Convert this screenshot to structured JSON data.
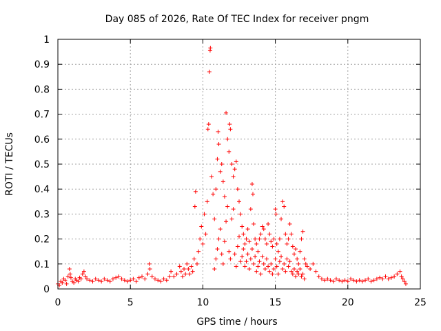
{
  "chart_data": {
    "type": "scatter",
    "title": "Day 085 of 2026, Rate Of TEC Index for receiver pngm",
    "xlabel": "GPS time / hours",
    "ylabel": "ROTI / TECUs",
    "xlim": [
      0,
      25
    ],
    "ylim": [
      0,
      1
    ],
    "xticks": [
      "0",
      "5",
      "10",
      "15",
      "20",
      "25"
    ],
    "yticks": [
      "0",
      "0.1",
      "0.2",
      "0.3",
      "0.4",
      "0.5",
      "0.6",
      "0.7",
      "0.8",
      "0.9",
      "1"
    ],
    "grid": true,
    "marker": "+",
    "color": "#ff0000",
    "series": [
      {
        "name": "ROTI",
        "points": [
          [
            0.0,
            0.02
          ],
          [
            0.1,
            0.015
          ],
          [
            0.2,
            0.03
          ],
          [
            0.3,
            0.025
          ],
          [
            0.4,
            0.04
          ],
          [
            0.5,
            0.035
          ],
          [
            0.6,
            0.02
          ],
          [
            0.7,
            0.05
          ],
          [
            0.8,
            0.08
          ],
          [
            0.85,
            0.06
          ],
          [
            0.9,
            0.045
          ],
          [
            1.0,
            0.03
          ],
          [
            1.1,
            0.025
          ],
          [
            1.2,
            0.04
          ],
          [
            1.3,
            0.035
          ],
          [
            1.4,
            0.03
          ],
          [
            1.5,
            0.045
          ],
          [
            1.6,
            0.04
          ],
          [
            1.7,
            0.06
          ],
          [
            1.8,
            0.07
          ],
          [
            1.9,
            0.05
          ],
          [
            2.0,
            0.04
          ],
          [
            2.2,
            0.035
          ],
          [
            2.4,
            0.03
          ],
          [
            2.6,
            0.04
          ],
          [
            2.8,
            0.035
          ],
          [
            3.0,
            0.03
          ],
          [
            3.2,
            0.04
          ],
          [
            3.4,
            0.035
          ],
          [
            3.6,
            0.03
          ],
          [
            3.8,
            0.04
          ],
          [
            4.0,
            0.045
          ],
          [
            4.2,
            0.05
          ],
          [
            4.4,
            0.04
          ],
          [
            4.6,
            0.035
          ],
          [
            4.8,
            0.03
          ],
          [
            5.0,
            0.035
          ],
          [
            5.2,
            0.04
          ],
          [
            5.4,
            0.03
          ],
          [
            5.6,
            0.045
          ],
          [
            5.8,
            0.05
          ],
          [
            6.0,
            0.04
          ],
          [
            6.2,
            0.06
          ],
          [
            6.3,
            0.1
          ],
          [
            6.35,
            0.08
          ],
          [
            6.5,
            0.05
          ],
          [
            6.7,
            0.04
          ],
          [
            6.9,
            0.035
          ],
          [
            7.1,
            0.03
          ],
          [
            7.3,
            0.04
          ],
          [
            7.5,
            0.035
          ],
          [
            7.7,
            0.05
          ],
          [
            7.8,
            0.07
          ],
          [
            8.0,
            0.05
          ],
          [
            8.2,
            0.06
          ],
          [
            8.4,
            0.09
          ],
          [
            8.5,
            0.07
          ],
          [
            8.6,
            0.05
          ],
          [
            8.7,
            0.08
          ],
          [
            8.8,
            0.06
          ],
          [
            8.9,
            0.1
          ],
          [
            9.0,
            0.08
          ],
          [
            9.1,
            0.06
          ],
          [
            9.2,
            0.09
          ],
          [
            9.3,
            0.07
          ],
          [
            9.4,
            0.12
          ],
          [
            9.45,
            0.33
          ],
          [
            9.5,
            0.39
          ],
          [
            9.6,
            0.1
          ],
          [
            9.7,
            0.15
          ],
          [
            9.8,
            0.2
          ],
          [
            9.9,
            0.25
          ],
          [
            10.0,
            0.18
          ],
          [
            10.1,
            0.3
          ],
          [
            10.2,
            0.22
          ],
          [
            10.3,
            0.35
          ],
          [
            10.35,
            0.64
          ],
          [
            10.4,
            0.66
          ],
          [
            10.45,
            0.87
          ],
          [
            10.5,
            0.955
          ],
          [
            10.52,
            0.965
          ],
          [
            10.6,
            0.45
          ],
          [
            10.7,
            0.38
          ],
          [
            10.8,
            0.28
          ],
          [
            10.9,
            0.4
          ],
          [
            11.0,
            0.52
          ],
          [
            11.05,
            0.63
          ],
          [
            11.1,
            0.58
          ],
          [
            11.2,
            0.47
          ],
          [
            11.3,
            0.5
          ],
          [
            11.4,
            0.43
          ],
          [
            11.5,
            0.37
          ],
          [
            11.6,
            0.705
          ],
          [
            11.7,
            0.6
          ],
          [
            11.8,
            0.55
          ],
          [
            11.85,
            0.66
          ],
          [
            11.9,
            0.64
          ],
          [
            12.0,
            0.5
          ],
          [
            12.1,
            0.45
          ],
          [
            12.2,
            0.48
          ],
          [
            12.3,
            0.51
          ],
          [
            12.4,
            0.4
          ],
          [
            12.5,
            0.35
          ],
          [
            12.6,
            0.3
          ],
          [
            12.7,
            0.25
          ],
          [
            12.8,
            0.22
          ],
          [
            12.9,
            0.18
          ],
          [
            13.0,
            0.2
          ],
          [
            13.1,
            0.24
          ],
          [
            13.2,
            0.19
          ],
          [
            13.3,
            0.32
          ],
          [
            13.4,
            0.42
          ],
          [
            13.45,
            0.38
          ],
          [
            13.5,
            0.26
          ],
          [
            13.6,
            0.2
          ],
          [
            13.7,
            0.18
          ],
          [
            13.8,
            0.15
          ],
          [
            13.9,
            0.2
          ],
          [
            14.0,
            0.22
          ],
          [
            14.1,
            0.25
          ],
          [
            14.2,
            0.24
          ],
          [
            14.3,
            0.2
          ],
          [
            14.4,
            0.18
          ],
          [
            14.5,
            0.26
          ],
          [
            14.6,
            0.22
          ],
          [
            14.7,
            0.19
          ],
          [
            14.8,
            0.17
          ],
          [
            14.9,
            0.2
          ],
          [
            15.0,
            0.32
          ],
          [
            15.05,
            0.3
          ],
          [
            15.1,
            0.18
          ],
          [
            15.2,
            0.15
          ],
          [
            15.3,
            0.2
          ],
          [
            15.4,
            0.28
          ],
          [
            15.5,
            0.35
          ],
          [
            15.6,
            0.33
          ],
          [
            15.7,
            0.22
          ],
          [
            15.8,
            0.18
          ],
          [
            15.9,
            0.2
          ],
          [
            16.0,
            0.26
          ],
          [
            16.1,
            0.22
          ],
          [
            16.2,
            0.17
          ],
          [
            16.3,
            0.14
          ],
          [
            16.4,
            0.16
          ],
          [
            16.5,
            0.12
          ],
          [
            16.6,
            0.1
          ],
          [
            16.7,
            0.15
          ],
          [
            16.8,
            0.2
          ],
          [
            16.9,
            0.23
          ],
          [
            17.0,
            0.12
          ],
          [
            17.1,
            0.1
          ],
          [
            17.2,
            0.09
          ],
          [
            17.4,
            0.08
          ],
          [
            17.6,
            0.1
          ],
          [
            17.8,
            0.07
          ],
          [
            18.0,
            0.05
          ],
          [
            18.2,
            0.04
          ],
          [
            18.4,
            0.035
          ],
          [
            18.6,
            0.04
          ],
          [
            18.8,
            0.035
          ],
          [
            19.0,
            0.03
          ],
          [
            19.2,
            0.04
          ],
          [
            19.4,
            0.035
          ],
          [
            19.6,
            0.03
          ],
          [
            19.8,
            0.035
          ],
          [
            20.0,
            0.03
          ],
          [
            20.2,
            0.04
          ],
          [
            20.4,
            0.035
          ],
          [
            20.6,
            0.03
          ],
          [
            20.8,
            0.035
          ],
          [
            21.0,
            0.03
          ],
          [
            21.2,
            0.035
          ],
          [
            21.4,
            0.04
          ],
          [
            21.6,
            0.03
          ],
          [
            21.8,
            0.035
          ],
          [
            22.0,
            0.04
          ],
          [
            22.2,
            0.045
          ],
          [
            22.4,
            0.04
          ],
          [
            22.6,
            0.05
          ],
          [
            22.8,
            0.04
          ],
          [
            23.0,
            0.045
          ],
          [
            23.2,
            0.05
          ],
          [
            23.4,
            0.06
          ],
          [
            23.6,
            0.07
          ],
          [
            23.7,
            0.05
          ],
          [
            23.8,
            0.04
          ],
          [
            23.9,
            0.03
          ],
          [
            24.0,
            0.02
          ],
          [
            10.8,
            0.08
          ],
          [
            10.9,
            0.12
          ],
          [
            11.0,
            0.16
          ],
          [
            11.1,
            0.2
          ],
          [
            11.2,
            0.24
          ],
          [
            11.3,
            0.14
          ],
          [
            11.4,
            0.1
          ],
          [
            11.5,
            0.19
          ],
          [
            11.6,
            0.27
          ],
          [
            11.7,
            0.33
          ],
          [
            11.8,
            0.15
          ],
          [
            11.9,
            0.12
          ],
          [
            12.0,
            0.28
          ],
          [
            12.1,
            0.32
          ],
          [
            12.2,
            0.14
          ],
          [
            12.3,
            0.09
          ],
          [
            12.4,
            0.17
          ],
          [
            12.5,
            0.21
          ],
          [
            12.6,
            0.11
          ],
          [
            12.7,
            0.13
          ],
          [
            12.8,
            0.16
          ],
          [
            12.9,
            0.09
          ],
          [
            13.0,
            0.11
          ],
          [
            13.1,
            0.14
          ],
          [
            13.2,
            0.08
          ],
          [
            13.3,
            0.12
          ],
          [
            13.4,
            0.16
          ],
          [
            13.5,
            0.1
          ],
          [
            13.6,
            0.13
          ],
          [
            13.7,
            0.07
          ],
          [
            13.8,
            0.09
          ],
          [
            13.9,
            0.11
          ],
          [
            14.0,
            0.06
          ],
          [
            14.1,
            0.13
          ],
          [
            14.2,
            0.1
          ],
          [
            14.3,
            0.08
          ],
          [
            14.4,
            0.12
          ],
          [
            14.5,
            0.09
          ],
          [
            14.6,
            0.07
          ],
          [
            14.7,
            0.1
          ],
          [
            14.8,
            0.06
          ],
          [
            14.9,
            0.08
          ],
          [
            15.0,
            0.12
          ],
          [
            15.1,
            0.09
          ],
          [
            15.2,
            0.06
          ],
          [
            15.3,
            0.11
          ],
          [
            15.4,
            0.13
          ],
          [
            15.5,
            0.08
          ],
          [
            15.6,
            0.1
          ],
          [
            15.7,
            0.07
          ],
          [
            15.8,
            0.12
          ],
          [
            15.9,
            0.09
          ],
          [
            16.0,
            0.11
          ],
          [
            16.1,
            0.07
          ],
          [
            16.2,
            0.06
          ],
          [
            16.3,
            0.08
          ],
          [
            16.4,
            0.05
          ],
          [
            16.5,
            0.07
          ],
          [
            16.6,
            0.06
          ],
          [
            16.7,
            0.08
          ],
          [
            16.8,
            0.05
          ],
          [
            16.9,
            0.06
          ],
          [
            17.0,
            0.04
          ]
        ]
      }
    ]
  }
}
